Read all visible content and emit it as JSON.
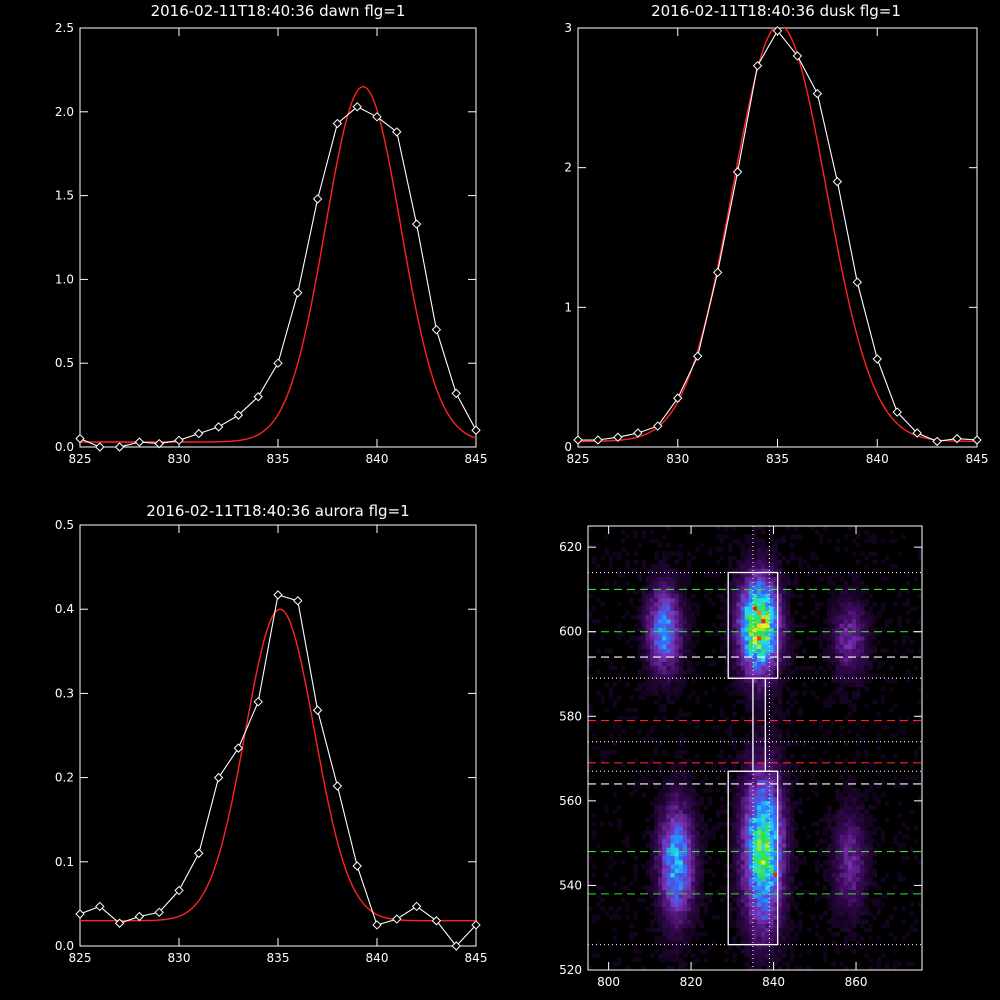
{
  "chart_data": [
    {
      "id": "dawn",
      "type": "line",
      "title": "2016-02-11T18:40:36 dawn flg=1",
      "xlim": [
        825,
        845
      ],
      "ylim": [
        0,
        2.5
      ],
      "xticks": [
        825,
        830,
        835,
        840,
        845
      ],
      "xtick_labels": [
        "825",
        "830",
        "835",
        "840",
        "845"
      ],
      "yticks": [
        0,
        0.5,
        1.0,
        1.5,
        2.0,
        2.5
      ],
      "ytick_labels": [
        "0.0",
        "0.5",
        "1.0",
        "1.5",
        "2.0",
        "2.5"
      ],
      "series": [
        {
          "role": "data",
          "color": "#ffffff",
          "marker": "diamond",
          "x": [
            825,
            826,
            827,
            828,
            829,
            830,
            831,
            832,
            833,
            834,
            835,
            836,
            837,
            838,
            839,
            840,
            841,
            842,
            843,
            844,
            845
          ],
          "y": [
            0.05,
            0.0,
            0.0,
            0.03,
            0.02,
            0.04,
            0.08,
            0.12,
            0.19,
            0.3,
            0.5,
            0.92,
            1.48,
            1.93,
            2.03,
            1.97,
            1.88,
            1.33,
            0.7,
            0.32,
            0.1
          ]
        },
        {
          "role": "fit",
          "color": "#ff2222",
          "kind": "gaussian",
          "amplitude": 2.12,
          "center": 839.3,
          "sigma": 1.9,
          "offset": 0.03
        }
      ]
    },
    {
      "id": "dusk",
      "type": "line",
      "title": "2016-02-11T18:40:36 dusk flg=1",
      "xlim": [
        825,
        845
      ],
      "ylim": [
        0,
        3
      ],
      "xticks": [
        825,
        830,
        835,
        840,
        845
      ],
      "xtick_labels": [
        "825",
        "830",
        "835",
        "840",
        "845"
      ],
      "yticks": [
        0,
        1,
        2,
        3
      ],
      "ytick_labels": [
        "0",
        "1",
        "2",
        "3"
      ],
      "series": [
        {
          "role": "data",
          "color": "#ffffff",
          "marker": "diamond",
          "x": [
            825,
            826,
            827,
            828,
            829,
            830,
            831,
            832,
            833,
            834,
            835,
            836,
            837,
            838,
            839,
            840,
            841,
            842,
            843,
            844,
            845
          ],
          "y": [
            0.05,
            0.05,
            0.07,
            0.1,
            0.15,
            0.35,
            0.65,
            1.25,
            1.97,
            2.73,
            2.98,
            2.8,
            2.53,
            1.9,
            1.18,
            0.63,
            0.25,
            0.1,
            0.04,
            0.06,
            0.05
          ]
        },
        {
          "role": "fit",
          "color": "#ff2222",
          "kind": "gaussian",
          "amplitude": 2.98,
          "center": 835.1,
          "sigma": 2.35,
          "offset": 0.04
        }
      ]
    },
    {
      "id": "aurora",
      "type": "line",
      "title": "2016-02-11T18:40:36 aurora flg=1",
      "xlim": [
        825,
        845
      ],
      "ylim": [
        0,
        0.5
      ],
      "xticks": [
        825,
        830,
        835,
        840,
        845
      ],
      "xtick_labels": [
        "825",
        "830",
        "835",
        "840",
        "845"
      ],
      "yticks": [
        0,
        0.1,
        0.2,
        0.3,
        0.4,
        0.5
      ],
      "ytick_labels": [
        "0.0",
        "0.1",
        "0.2",
        "0.3",
        "0.4",
        "0.5"
      ],
      "series": [
        {
          "role": "data",
          "color": "#ffffff",
          "marker": "diamond",
          "x": [
            825,
            826,
            827,
            828,
            829,
            830,
            831,
            832,
            833,
            834,
            835,
            836,
            837,
            838,
            839,
            840,
            841,
            842,
            843,
            844,
            845
          ],
          "y": [
            0.038,
            0.047,
            0.027,
            0.035,
            0.04,
            0.066,
            0.11,
            0.2,
            0.235,
            0.29,
            0.417,
            0.41,
            0.28,
            0.19,
            0.095,
            0.025,
            0.032,
            0.047,
            0.03,
            0.0,
            0.025
          ]
        },
        {
          "role": "fit",
          "color": "#ff2222",
          "kind": "gaussian",
          "amplitude": 0.37,
          "center": 835.1,
          "sigma": 1.75,
          "offset": 0.03
        }
      ]
    },
    {
      "id": "image",
      "type": "heatmap",
      "title": "",
      "xlim": [
        795,
        876
      ],
      "ylim": [
        520,
        625
      ],
      "xticks": [
        800,
        820,
        840,
        860
      ],
      "xtick_labels": [
        "800",
        "820",
        "840",
        "860"
      ],
      "yticks": [
        520,
        540,
        560,
        580,
        600,
        620
      ],
      "ytick_labels": [
        "520",
        "540",
        "560",
        "580",
        "600",
        "620"
      ],
      "colormap": [
        "#000000",
        "#3a0a5a",
        "#7a30b0",
        "#3070ff",
        "#20e0f0",
        "#30e040",
        "#f0f020",
        "#ff2000"
      ],
      "blobs": [
        {
          "x": 813,
          "y": 600,
          "sx": 2.8,
          "sy": 6.5,
          "amp": 0.55
        },
        {
          "x": 816,
          "y": 545,
          "sx": 2.8,
          "sy": 9,
          "amp": 0.6
        },
        {
          "x": 836,
          "y": 601,
          "sx": 3.2,
          "sy": 7.5,
          "amp": 1.0
        },
        {
          "x": 837,
          "y": 548,
          "sx": 3.2,
          "sy": 12,
          "amp": 0.82
        },
        {
          "x": 858,
          "y": 598,
          "sx": 2.8,
          "sy": 6,
          "amp": 0.28
        },
        {
          "x": 858,
          "y": 545,
          "sx": 2.8,
          "sy": 8,
          "amp": 0.26
        }
      ],
      "hot_pixels": [
        {
          "x": 835,
          "y": 605
        },
        {
          "x": 837,
          "y": 602
        },
        {
          "x": 840,
          "y": 542
        }
      ],
      "boxes": [
        {
          "x0": 829,
          "x1": 841,
          "y0": 589,
          "y1": 614,
          "color": "#ffffff"
        },
        {
          "x0": 829,
          "x1": 841,
          "y0": 526,
          "y1": 567,
          "color": "#ffffff"
        },
        {
          "x0": 835,
          "x1": 838,
          "y0": 567,
          "y1": 589,
          "color": "#ffffff"
        }
      ],
      "vlines": [
        {
          "x": 835,
          "color": "#ffffff",
          "style": "dotted"
        },
        {
          "x": 839,
          "color": "#ffffff",
          "style": "dotted"
        }
      ],
      "hlines": [
        {
          "y": 614,
          "color": "#ffffff",
          "style": "dotted"
        },
        {
          "y": 589,
          "color": "#ffffff",
          "style": "dotted"
        },
        {
          "y": 574,
          "color": "#ffffff",
          "style": "dotted"
        },
        {
          "y": 567,
          "color": "#ffffff",
          "style": "dotted"
        },
        {
          "y": 526,
          "color": "#ffffff",
          "style": "dotted"
        },
        {
          "y": 610,
          "color": "#30e030",
          "style": "dashed"
        },
        {
          "y": 600,
          "color": "#30e030",
          "style": "dashed"
        },
        {
          "y": 548,
          "color": "#30e030",
          "style": "dashed"
        },
        {
          "y": 538,
          "color": "#30e030",
          "style": "dashed"
        },
        {
          "y": 594,
          "color": "#ffffff",
          "style": "dashed"
        },
        {
          "y": 564,
          "color": "#ffffff",
          "style": "dashed"
        },
        {
          "y": 579,
          "color": "#ff2020",
          "style": "dashed"
        },
        {
          "y": 569,
          "color": "#ff2020",
          "style": "dashed"
        }
      ]
    }
  ]
}
